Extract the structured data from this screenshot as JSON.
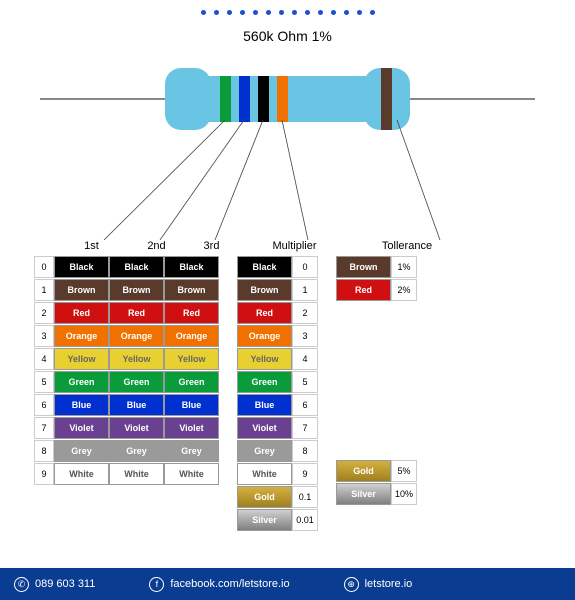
{
  "resistor_label": "560k Ohm  1%",
  "bands": {
    "digit1": "#0a9b3a",
    "digit2": "#0030d0",
    "digit3": "#000000",
    "multiplier": "#f07000",
    "tolerance": "#5a3a2a"
  },
  "headers": {
    "d1": "1st",
    "d2": "2nd",
    "d3": "3rd",
    "mult": "Multiplier",
    "tol": "Tollerance"
  },
  "digit_rows": [
    {
      "num": "0",
      "label": "Black",
      "bg": "#000000",
      "fg": "#ffffff"
    },
    {
      "num": "1",
      "label": "Brown",
      "bg": "#5a3a2a",
      "fg": "#ffffff"
    },
    {
      "num": "2",
      "label": "Red",
      "bg": "#d01010",
      "fg": "#ffffff"
    },
    {
      "num": "3",
      "label": "Orange",
      "bg": "#f07000",
      "fg": "#ffffff"
    },
    {
      "num": "4",
      "label": "Yellow",
      "bg": "#e8d030",
      "fg": "#666666"
    },
    {
      "num": "5",
      "label": "Green",
      "bg": "#0a9b3a",
      "fg": "#ffffff"
    },
    {
      "num": "6",
      "label": "Blue",
      "bg": "#0030d0",
      "fg": "#ffffff"
    },
    {
      "num": "7",
      "label": "Violet",
      "bg": "#6a4090",
      "fg": "#ffffff"
    },
    {
      "num": "8",
      "label": "Grey",
      "bg": "#9a9a9a",
      "fg": "#ffffff"
    },
    {
      "num": "9",
      "label": "White",
      "bg": "#ffffff",
      "fg": "#555555"
    }
  ],
  "mult_rows": [
    {
      "num": "0",
      "label": "Black",
      "bg": "#000000",
      "fg": "#ffffff"
    },
    {
      "num": "1",
      "label": "Brown",
      "bg": "#5a3a2a",
      "fg": "#ffffff"
    },
    {
      "num": "2",
      "label": "Red",
      "bg": "#d01010",
      "fg": "#ffffff"
    },
    {
      "num": "3",
      "label": "Orange",
      "bg": "#f07000",
      "fg": "#ffffff"
    },
    {
      "num": "4",
      "label": "Yellow",
      "bg": "#e8d030",
      "fg": "#666666"
    },
    {
      "num": "5",
      "label": "Green",
      "bg": "#0a9b3a",
      "fg": "#ffffff"
    },
    {
      "num": "6",
      "label": "Blue",
      "bg": "#0030d0",
      "fg": "#ffffff"
    },
    {
      "num": "7",
      "label": "Violet",
      "bg": "#6a4090",
      "fg": "#ffffff"
    },
    {
      "num": "8",
      "label": "Grey",
      "bg": "#9a9a9a",
      "fg": "#ffffff"
    },
    {
      "num": "9",
      "label": "White",
      "bg": "#ffffff",
      "fg": "#555555"
    },
    {
      "num": "0.1",
      "label": "Gold",
      "bg": "linear-gradient(#d4b040,#a08020)",
      "fg": "#ffffff"
    },
    {
      "num": "0.01",
      "label": "Silver",
      "bg": "linear-gradient(#d0d0d0,#808080)",
      "fg": "#ffffff"
    }
  ],
  "tol_rows_top": [
    {
      "pct": "1%",
      "label": "Brown",
      "bg": "#5a3a2a",
      "fg": "#ffffff"
    },
    {
      "pct": "2%",
      "label": "Red",
      "bg": "#d01010",
      "fg": "#ffffff"
    }
  ],
  "tol_rows_bottom": [
    {
      "pct": "5%",
      "label": "Gold",
      "bg": "linear-gradient(#d4b040,#a08020)",
      "fg": "#ffffff"
    },
    {
      "pct": "10%",
      "label": "Silver",
      "bg": "linear-gradient(#d0d0d0,#808080)",
      "fg": "#ffffff"
    }
  ],
  "footer": {
    "phone": "089 603 311",
    "fb": "facebook.com/letstore.io",
    "web": "letstore.io"
  },
  "colors": {
    "footer_bg": "#0a3d91",
    "dot": "#1e4fd0",
    "body": "#6ac4e4"
  }
}
